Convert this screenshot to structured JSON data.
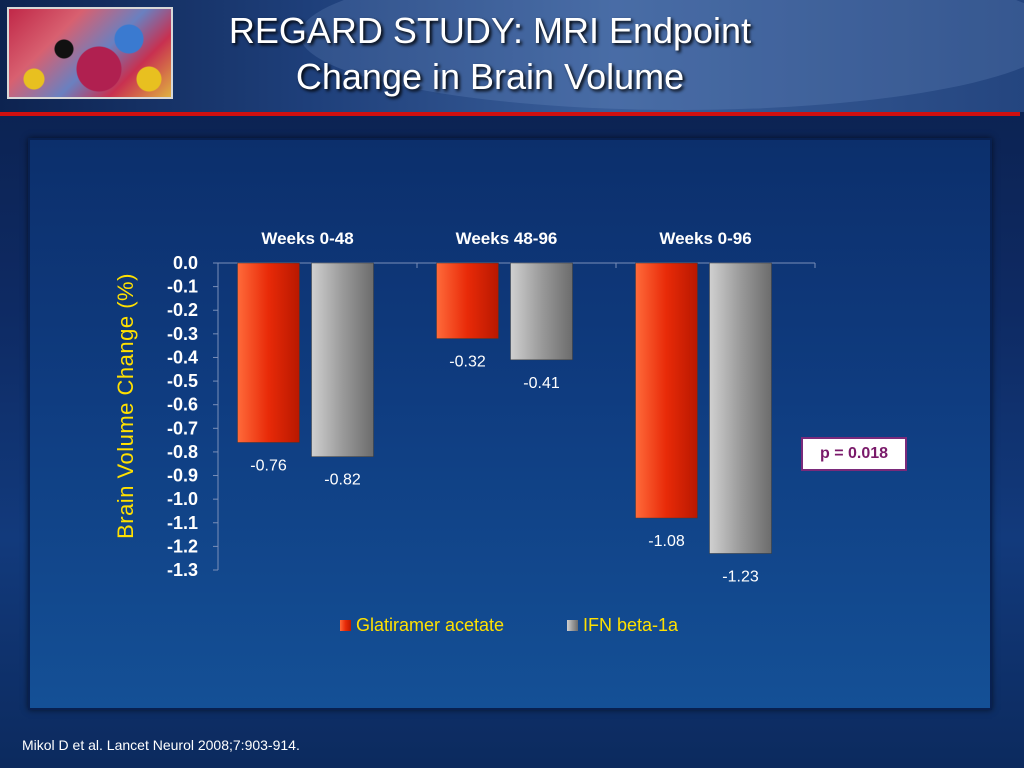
{
  "slide": {
    "title_line1": "REGARD STUDY: MRI Endpoint",
    "title_line2": "Change in Brain Volume",
    "citation": "Mikol D et al. Lancet Neurol 2008;7:903-914.",
    "p_value": "p = 0.018",
    "logo_icon": "brain-mri-slice-image"
  },
  "colors": {
    "glatiramer": "#e82a08",
    "ifn": "#9a9a9a",
    "ylabel": "#ffe000",
    "legend_text": "#ffe000",
    "accent_line": "#d01010"
  },
  "chart_data": {
    "type": "bar",
    "title": "",
    "ylabel": "Brain Volume Change (%)",
    "xlabel": "",
    "ylim": [
      -1.3,
      0.0
    ],
    "y_ticks": [
      "0.0",
      "-0.1",
      "-0.2",
      "-0.3",
      "-0.4",
      "-0.5",
      "-0.6",
      "-0.7",
      "-0.8",
      "-0.9",
      "-1.0",
      "-1.1",
      "-1.2",
      "-1.3"
    ],
    "y_tick_values": [
      0.0,
      -0.1,
      -0.2,
      -0.3,
      -0.4,
      -0.5,
      -0.6,
      -0.7,
      -0.8,
      -0.9,
      -1.0,
      -1.1,
      -1.2,
      -1.3
    ],
    "categories": [
      "Weeks 0-48",
      "Weeks 48-96",
      "Weeks 0-96"
    ],
    "series": [
      {
        "name": "Glatiramer acetate",
        "values": [
          -0.76,
          -0.32,
          -1.08
        ],
        "labels": [
          "-0.76",
          "-0.32",
          "-1.08"
        ]
      },
      {
        "name": "IFN beta-1a",
        "values": [
          -0.82,
          -0.41,
          -1.23
        ],
        "labels": [
          "-0.82",
          "-0.41",
          "-1.23"
        ]
      }
    ],
    "legend_position": "bottom",
    "grid": false
  }
}
